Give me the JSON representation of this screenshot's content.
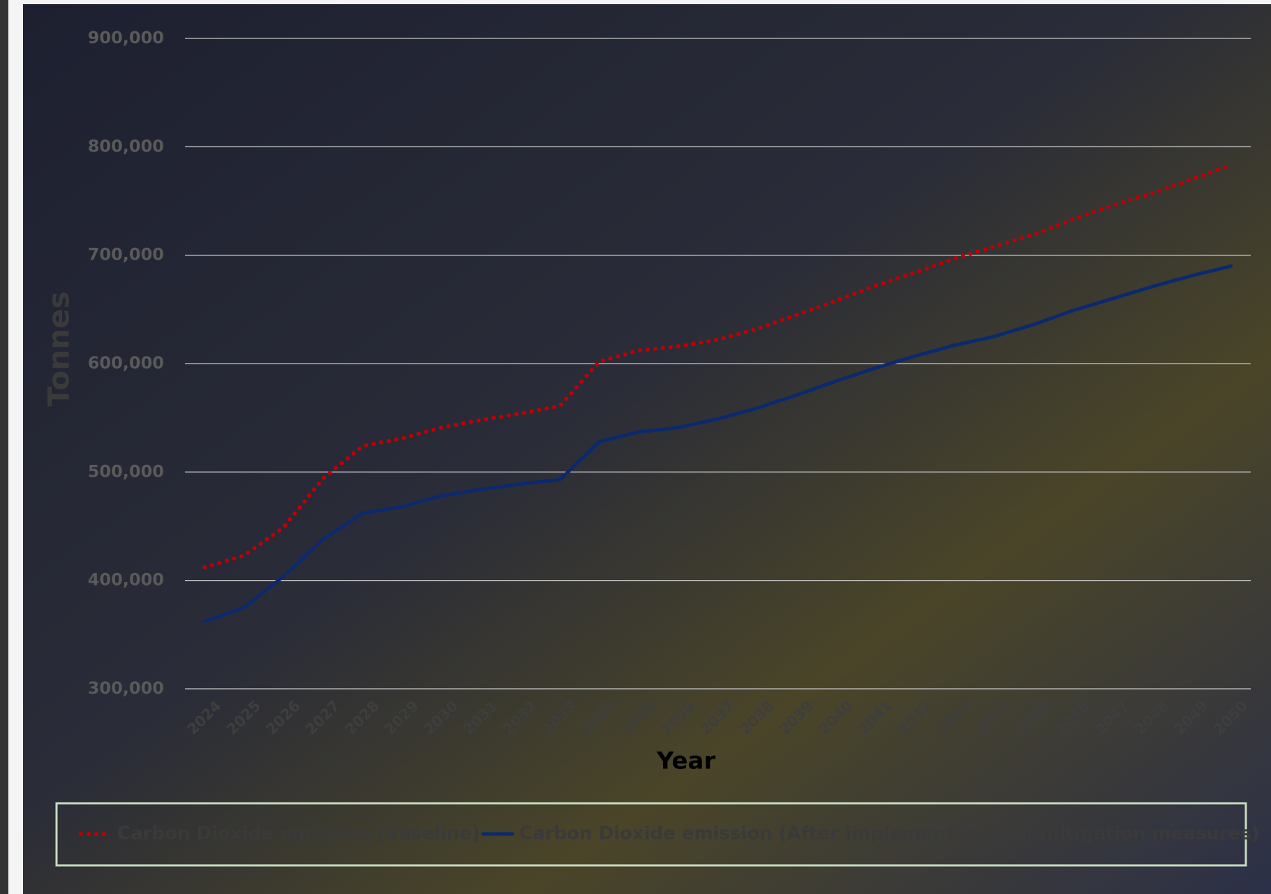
{
  "chart_data": {
    "type": "line",
    "x_label": "Year",
    "y_label": "Tonnes",
    "categories": [
      "2024",
      "2025",
      "2026",
      "2027",
      "2028",
      "2029",
      "2030",
      "2031",
      "2032",
      "2033",
      "2034",
      "2035",
      "2036",
      "2037",
      "2038",
      "2039",
      "2040",
      "2041",
      "2042",
      "2043",
      "2044",
      "2045",
      "2046",
      "2047",
      "2048",
      "2049",
      "2050"
    ],
    "series": [
      {
        "name": "Carbon Dioxide emission (Baseline)",
        "color": "#c00000",
        "style": "dotted",
        "values": [
          412000,
          423000,
          449000,
          494000,
          524000,
          531000,
          541000,
          548000,
          554000,
          561000,
          602000,
          612000,
          616000,
          622000,
          632000,
          645000,
          658000,
          672000,
          684000,
          697000,
          708000,
          719000,
          733000,
          746000,
          757000,
          770000,
          783000
        ]
      },
      {
        "name": "Carbon Dioxide emission (After implementation of mitigation measures)",
        "color": "#0b2a6e",
        "style": "solid",
        "values": [
          362000,
          375000,
          404000,
          438000,
          462000,
          468000,
          478000,
          484000,
          489000,
          493000,
          528000,
          537000,
          541000,
          549000,
          559000,
          571000,
          584000,
          596000,
          607000,
          617000,
          625000,
          636000,
          649000,
          660000,
          671000,
          681000,
          690000
        ]
      }
    ],
    "ylim": [
      300000,
      900000
    ],
    "yticks": [
      {
        "value": 300000,
        "label": "300,000"
      },
      {
        "value": 400000,
        "label": "400,000"
      },
      {
        "value": 500000,
        "label": "500,000"
      },
      {
        "value": 600000,
        "label": "600,000"
      },
      {
        "value": 700000,
        "label": "700,000"
      },
      {
        "value": 800000,
        "label": "800,000"
      },
      {
        "value": 900000,
        "label": "900,000"
      }
    ],
    "grid": true,
    "legend": "bottom"
  }
}
